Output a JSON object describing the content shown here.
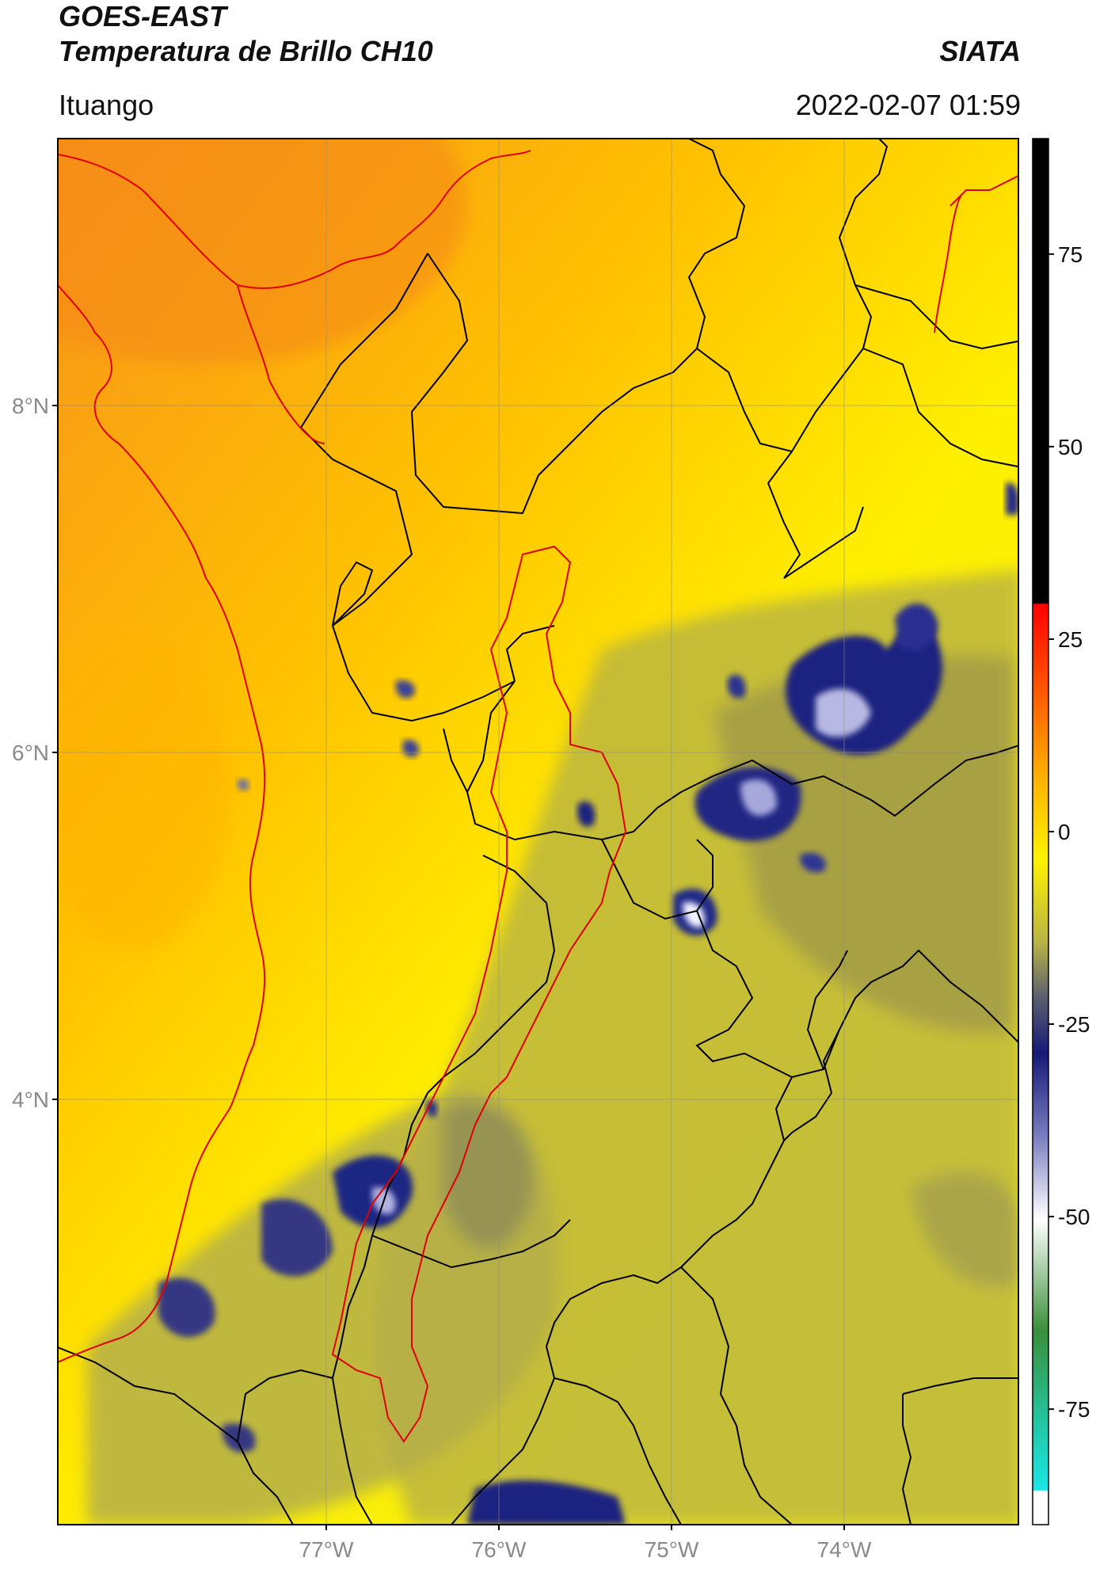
{
  "header": {
    "satellite": "GOES-EAST",
    "product": "Temperatura de Brillo CH10",
    "brand": "SIATA",
    "region": "Ituango",
    "datetime": "2022-02-07 01:59"
  },
  "map": {
    "lat_range": [
      2.0,
      9.5
    ],
    "lon_range": [
      -78.5,
      -72.95
    ],
    "lat_ticks": [
      "8°N",
      "6°N",
      "4°N"
    ],
    "lon_ticks": [
      "77°W",
      "76°W",
      "75°W",
      "74°W"
    ],
    "gridlines": true,
    "colors": {
      "warm": "#f7931e",
      "mid": "#ffe800",
      "olive": "#b9b34a",
      "cold": "#1a237e",
      "coast_line": "#e00000",
      "admin_line": "#000000",
      "basin_line": "#e00000"
    }
  },
  "colorbar": {
    "label_ticks": [
      "75",
      "50",
      "25",
      "0",
      "-25",
      "-50",
      "-75"
    ],
    "tick_values": [
      75,
      50,
      25,
      0,
      -25,
      -50,
      -75
    ],
    "range": [
      -90,
      90
    ]
  }
}
